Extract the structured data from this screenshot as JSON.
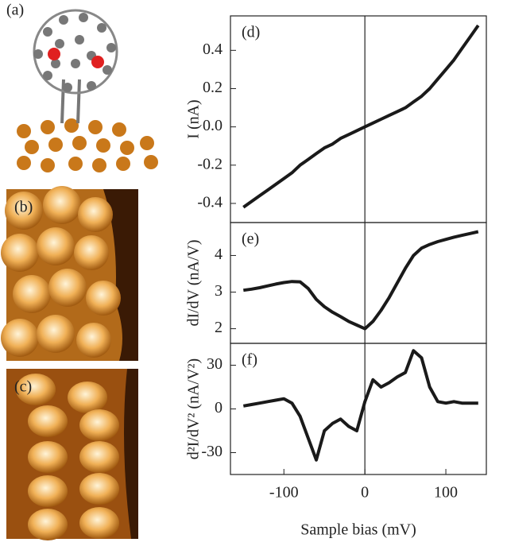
{
  "images": [
    {
      "label": "(a)"
    },
    {
      "label": "(b)"
    },
    {
      "label": "(c)"
    }
  ],
  "chart_data": [
    {
      "type": "line",
      "label": "(d)",
      "ylabel": "I (nA)",
      "x": [
        -150,
        -140,
        -130,
        -120,
        -110,
        -100,
        -90,
        -80,
        -70,
        -60,
        -50,
        -40,
        -30,
        -20,
        -10,
        0,
        10,
        20,
        30,
        40,
        50,
        60,
        70,
        80,
        90,
        100,
        110,
        120,
        130,
        140
      ],
      "values": [
        -0.42,
        -0.39,
        -0.36,
        -0.33,
        -0.3,
        -0.27,
        -0.24,
        -0.2,
        -0.17,
        -0.14,
        -0.11,
        -0.09,
        -0.06,
        -0.04,
        -0.02,
        0.0,
        0.02,
        0.04,
        0.06,
        0.08,
        0.1,
        0.13,
        0.16,
        0.2,
        0.25,
        0.3,
        0.35,
        0.41,
        0.47,
        0.53
      ],
      "color": "#1a1a1a",
      "xlim": [
        -166,
        150
      ],
      "ylim": [
        -0.5,
        0.58
      ],
      "yticks": [
        {
          "value": -0.4,
          "label": "-0.4"
        },
        {
          "value": -0.2,
          "label": "-0.2"
        },
        {
          "value": 0,
          "label": "0.0"
        },
        0.2,
        0.4
      ]
    },
    {
      "type": "line",
      "label": "(e)",
      "ylabel": "dI/dV (nA/V)",
      "x": [
        -150,
        -140,
        -130,
        -120,
        -110,
        -100,
        -90,
        -80,
        -70,
        -60,
        -50,
        -40,
        -30,
        -20,
        -10,
        0,
        10,
        20,
        30,
        40,
        50,
        60,
        70,
        80,
        90,
        100,
        110,
        120,
        130,
        140
      ],
      "values": [
        3.05,
        3.08,
        3.12,
        3.17,
        3.22,
        3.26,
        3.29,
        3.28,
        3.1,
        2.8,
        2.6,
        2.45,
        2.33,
        2.2,
        2.1,
        2.0,
        2.2,
        2.5,
        2.85,
        3.25,
        3.65,
        4.0,
        4.2,
        4.3,
        4.38,
        4.44,
        4.5,
        4.55,
        4.6,
        4.65
      ],
      "color": "#1a1a1a",
      "xlim": [
        -166,
        150
      ],
      "ylim": [
        1.6,
        4.9
      ],
      "yticks": [
        2,
        3,
        4
      ]
    },
    {
      "type": "line",
      "label": "(f)",
      "ylabel": "d²I/dV² (nA/V²)",
      "xlabel": "Sample bias (mV)",
      "x": [
        -150,
        -140,
        -130,
        -120,
        -110,
        -100,
        -90,
        -80,
        -70,
        -60,
        -50,
        -40,
        -30,
        -20,
        -10,
        0,
        10,
        20,
        30,
        40,
        50,
        60,
        70,
        80,
        90,
        100,
        110,
        120,
        130,
        140
      ],
      "values": [
        2,
        3,
        4,
        5,
        6,
        7,
        4,
        -5,
        -20,
        -35,
        -15,
        -10,
        -7,
        -12,
        -15,
        5,
        20,
        15,
        18,
        22,
        25,
        40,
        35,
        15,
        5,
        4,
        5,
        4,
        4,
        4
      ],
      "color": "#1a1a1a",
      "xlim": [
        -166,
        150
      ],
      "ylim": [
        -45,
        45
      ],
      "yticks": [
        -30,
        0,
        30
      ],
      "xticks": [
        -100,
        0,
        100
      ]
    }
  ]
}
